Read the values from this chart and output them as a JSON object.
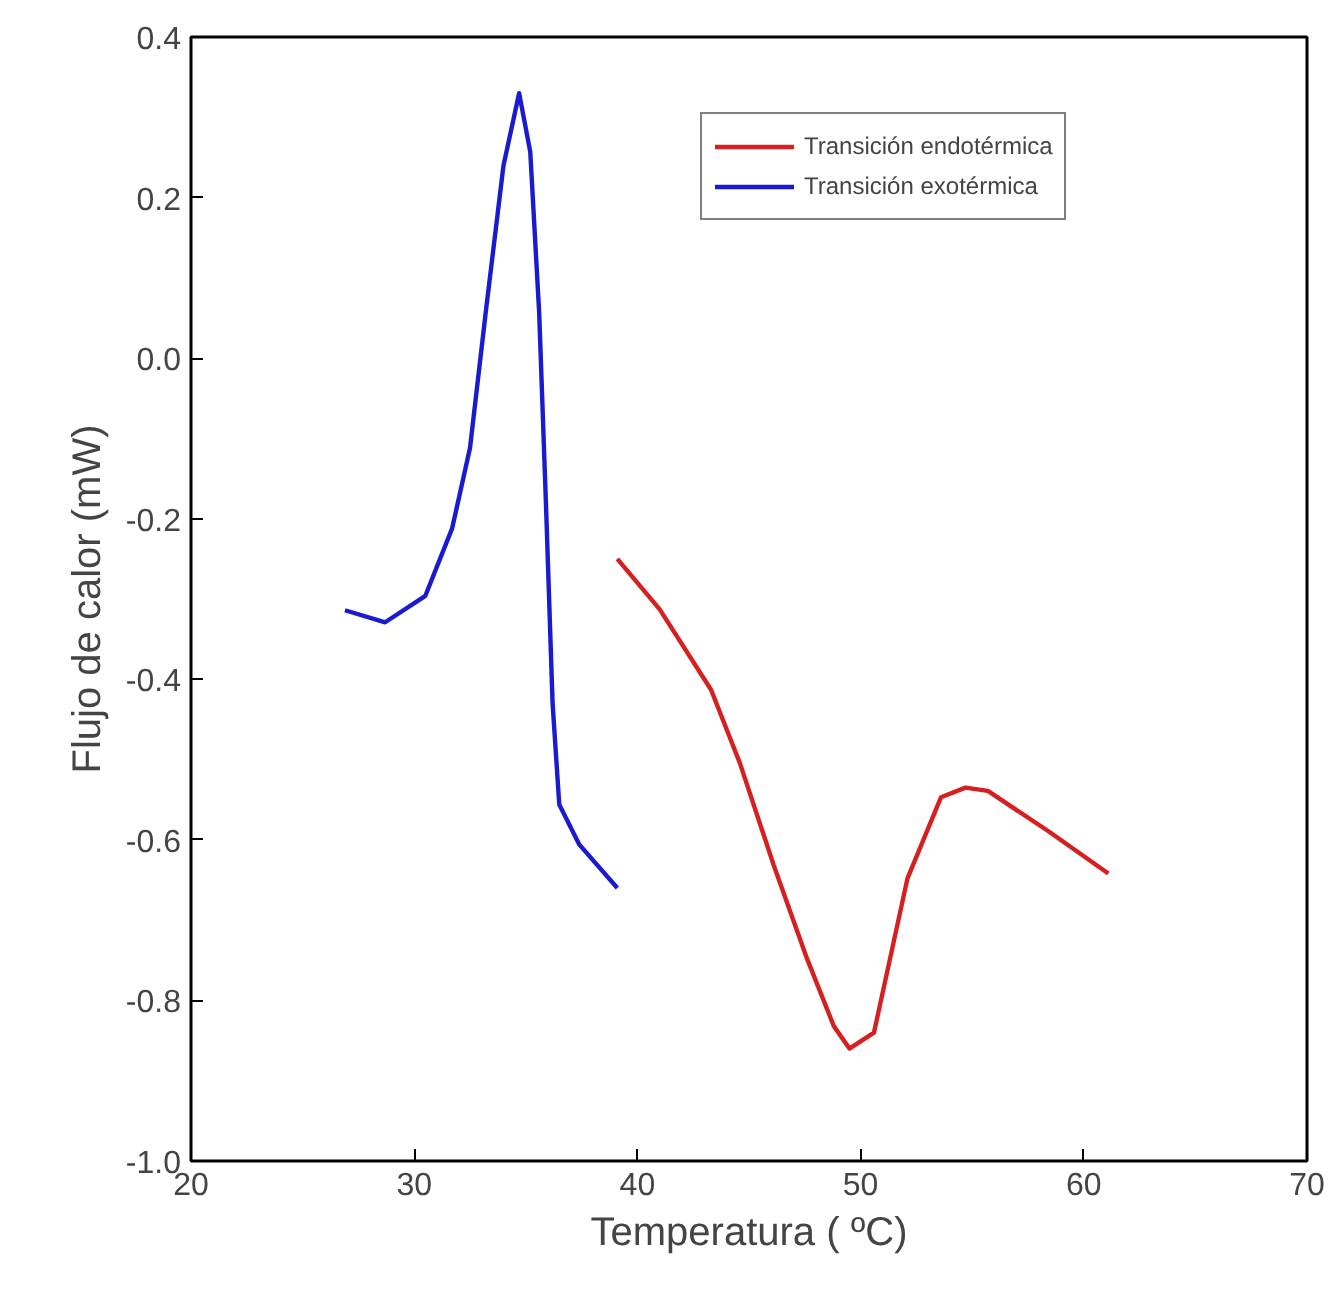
{
  "chart_data": {
    "type": "line",
    "xlabel": "Temperatura ( ºC)",
    "ylabel": "Flujo de calor (mW)",
    "xlim": [
      20,
      70
    ],
    "xticks": [
      20,
      30,
      40,
      50,
      60,
      70
    ],
    "ylim": [
      -1.0,
      0.4
    ],
    "yticks": [
      {
        "value": -1.0,
        "label": "-1.0"
      },
      {
        "value": -0.8,
        "label": "-0.8"
      },
      {
        "value": -0.6,
        "label": "-0.6"
      },
      {
        "value": -0.4,
        "label": "-0.4"
      },
      {
        "value": -0.2,
        "label": "-0.2"
      },
      {
        "value": 0.0,
        "label": "0.0"
      },
      {
        "value": 0.2,
        "label": "0.2"
      },
      {
        "value": 0.4,
        "label": "0.4"
      }
    ],
    "grid": false,
    "legend": "top right",
    "line_style": "solid",
    "series": [
      {
        "name": "Transición endotérmica",
        "color": "#d62020",
        "x": [
          39.1,
          41.0,
          43.3,
          44.6,
          46.1,
          47.6,
          48.8,
          49.5,
          50.6,
          52.1,
          53.6,
          54.7,
          55.7,
          58.4,
          61.1
        ],
        "values": [
          -0.25,
          -0.313,
          -0.413,
          -0.505,
          -0.631,
          -0.748,
          -0.832,
          -0.86,
          -0.84,
          -0.648,
          -0.547,
          -0.535,
          -0.539,
          -0.589,
          -0.642
        ]
      },
      {
        "name": "Transición exotérmica",
        "color": "#1a1ad0",
        "x": [
          26.9,
          28.7,
          30.5,
          31.7,
          32.5,
          33.2,
          34.0,
          34.7,
          35.2,
          35.6,
          35.9,
          36.2,
          36.5,
          37.4,
          39.1
        ],
        "values": [
          -0.314,
          -0.329,
          -0.296,
          -0.212,
          -0.112,
          0.056,
          0.24,
          0.33,
          0.257,
          0.056,
          -0.179,
          -0.43,
          -0.556,
          -0.606,
          -0.66
        ]
      }
    ]
  }
}
